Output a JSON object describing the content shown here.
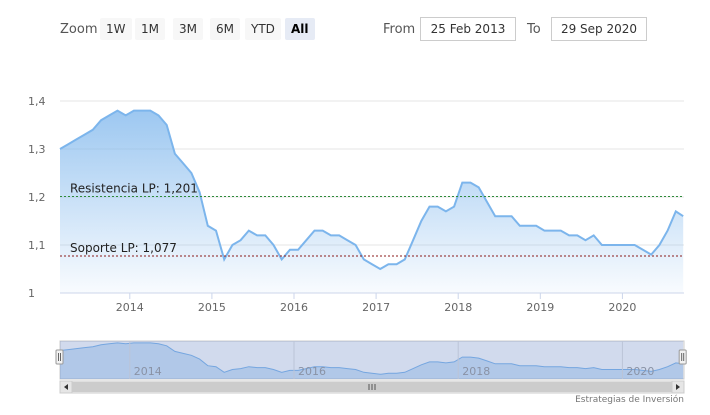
{
  "toolbar": {
    "zoom_label": "Zoom",
    "zoom_buttons": [
      "1W",
      "1M",
      "3M",
      "6M",
      "YTD",
      "All"
    ],
    "active_zoom": "All",
    "from_label": "From",
    "from_value": "25 Feb 2013",
    "to_label": "To",
    "to_value": "29 Sep 2020"
  },
  "credit": "Estrategias de Inversión",
  "colors": {
    "line": "#7cb5ec",
    "resistance": "#2e8b3a",
    "support": "#8b1a1a",
    "navigator_mask": "rgba(102,133,194,0.3)"
  },
  "chart_data": {
    "type": "area",
    "x": [
      2013.15,
      2013.25,
      2013.35,
      2013.45,
      2013.55,
      2013.65,
      2013.75,
      2013.85,
      2013.95,
      2014.05,
      2014.15,
      2014.25,
      2014.35,
      2014.45,
      2014.55,
      2014.65,
      2014.75,
      2014.85,
      2014.95,
      2015.05,
      2015.15,
      2015.25,
      2015.35,
      2015.45,
      2015.55,
      2015.65,
      2015.75,
      2015.85,
      2015.95,
      2016.05,
      2016.15,
      2016.25,
      2016.35,
      2016.45,
      2016.55,
      2016.65,
      2016.75,
      2016.85,
      2016.95,
      2017.05,
      2017.15,
      2017.25,
      2017.35,
      2017.45,
      2017.55,
      2017.65,
      2017.75,
      2017.85,
      2017.95,
      2018.05,
      2018.15,
      2018.25,
      2018.35,
      2018.45,
      2018.55,
      2018.65,
      2018.75,
      2018.85,
      2018.95,
      2019.05,
      2019.15,
      2019.25,
      2019.35,
      2019.45,
      2019.55,
      2019.65,
      2019.75,
      2019.85,
      2019.95,
      2020.05,
      2020.15,
      2020.25,
      2020.35,
      2020.45,
      2020.55,
      2020.65,
      2020.74
    ],
    "values": [
      1.3,
      1.31,
      1.32,
      1.33,
      1.34,
      1.36,
      1.37,
      1.38,
      1.37,
      1.38,
      1.38,
      1.38,
      1.37,
      1.35,
      1.29,
      1.27,
      1.25,
      1.21,
      1.14,
      1.13,
      1.07,
      1.1,
      1.11,
      1.13,
      1.12,
      1.12,
      1.1,
      1.07,
      1.09,
      1.09,
      1.11,
      1.13,
      1.13,
      1.12,
      1.12,
      1.11,
      1.1,
      1.07,
      1.06,
      1.05,
      1.06,
      1.06,
      1.07,
      1.11,
      1.15,
      1.18,
      1.18,
      1.17,
      1.18,
      1.23,
      1.23,
      1.22,
      1.19,
      1.16,
      1.16,
      1.16,
      1.14,
      1.14,
      1.14,
      1.13,
      1.13,
      1.13,
      1.12,
      1.12,
      1.11,
      1.12,
      1.1,
      1.1,
      1.1,
      1.1,
      1.1,
      1.09,
      1.08,
      1.1,
      1.13,
      1.17,
      1.16
    ],
    "xlim": [
      2013.15,
      2020.75
    ],
    "ylim": [
      1.0,
      1.4
    ],
    "yticks": [
      1,
      1.1,
      1.2,
      1.3,
      1.4
    ],
    "ytick_labels": [
      "1",
      "1,1",
      "1,2",
      "1,3",
      "1,4"
    ],
    "xticks": [
      2014,
      2015,
      2016,
      2017,
      2018,
      2019,
      2020
    ],
    "xtick_labels": [
      "2014",
      "2015",
      "2016",
      "2017",
      "2018",
      "2019",
      "2020"
    ],
    "grid": true,
    "annotations": [
      {
        "label": "Resistencia LP: 1,201",
        "value": 1.201,
        "style": "dashed",
        "color": "#2e8b3a"
      },
      {
        "label": "Soporte LP: 1,077",
        "value": 1.077,
        "style": "dashed",
        "color": "#8b1a1a"
      }
    ],
    "navigator": {
      "xtick_labels": [
        "2014",
        "2016",
        "2018",
        "2020"
      ],
      "xticks": [
        2014,
        2016,
        2018,
        2020
      ],
      "selected_range": [
        2013.15,
        2020.74
      ]
    }
  }
}
